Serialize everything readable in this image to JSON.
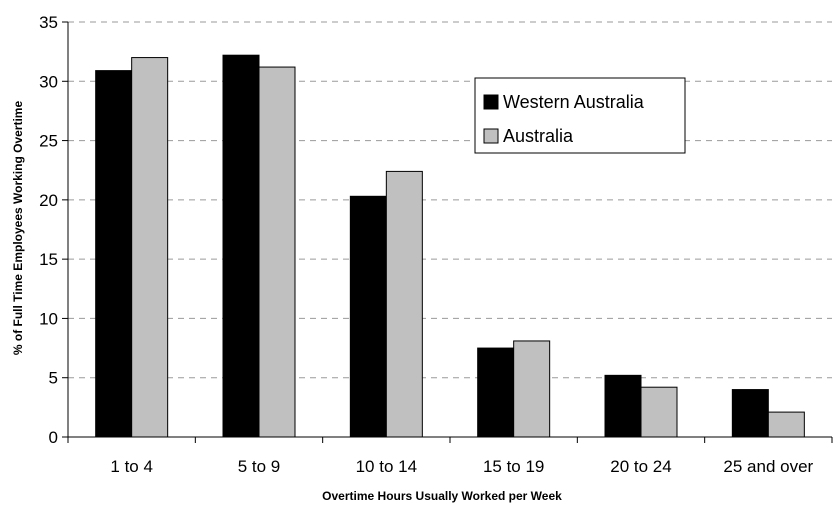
{
  "chart_data": {
    "type": "bar",
    "categories": [
      "1 to 4",
      "5 to 9",
      "10 to 14",
      "15 to 19",
      "20 to 24",
      "25 and over"
    ],
    "series": [
      {
        "name": "Western Australia",
        "color": "#000000",
        "values": [
          30.9,
          32.2,
          20.3,
          7.5,
          5.2,
          4.0
        ]
      },
      {
        "name": "Australia",
        "color": "#c0c0c0",
        "values": [
          32.0,
          31.2,
          22.4,
          8.1,
          4.2,
          2.1
        ]
      }
    ],
    "xlabel": "Overtime Hours Usually Worked per Week",
    "ylabel": "% of Full Time Employees Working Overtime",
    "ylim": [
      0,
      35
    ],
    "yticks": [
      0,
      5,
      10,
      15,
      20,
      25,
      30,
      35
    ],
    "grid": "horizontal dashed",
    "legend_position": "upper-right"
  }
}
